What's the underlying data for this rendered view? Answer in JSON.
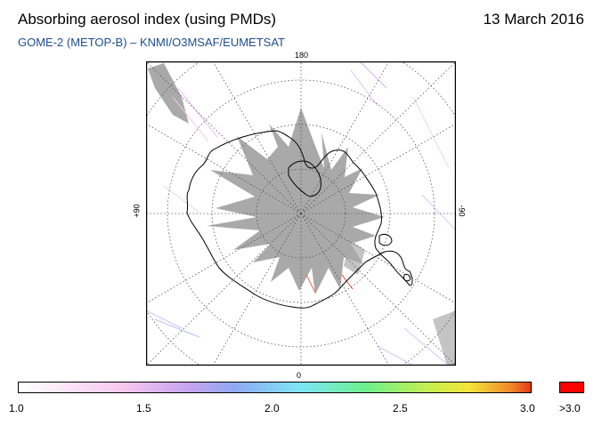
{
  "title": "Absorbing aerosol index (using PMDs)",
  "date": "13 March 2016",
  "subtitle": "GOME-2 (METOP-B)  –  KNMI/O3MSAF/EUMETSAT",
  "longitude_labels": {
    "top": "180",
    "bottom": "0",
    "left": "+90",
    "right": "-90"
  },
  "colorbar": {
    "ticks": [
      "1.0",
      "1.5",
      "2.0",
      "2.5",
      "3.0"
    ],
    "overflow_label": ">3.0",
    "colors": [
      "#ffffff",
      "#f9c8f0",
      "#c8a4f0",
      "#8fa8f4",
      "#7de6f7",
      "#6ef08a",
      "#c6ef50",
      "#f4e53a",
      "#f08a2a",
      "#e53a1a"
    ],
    "overflow_color": "#ff0000"
  },
  "no_data_color": "#a9a9a9"
}
